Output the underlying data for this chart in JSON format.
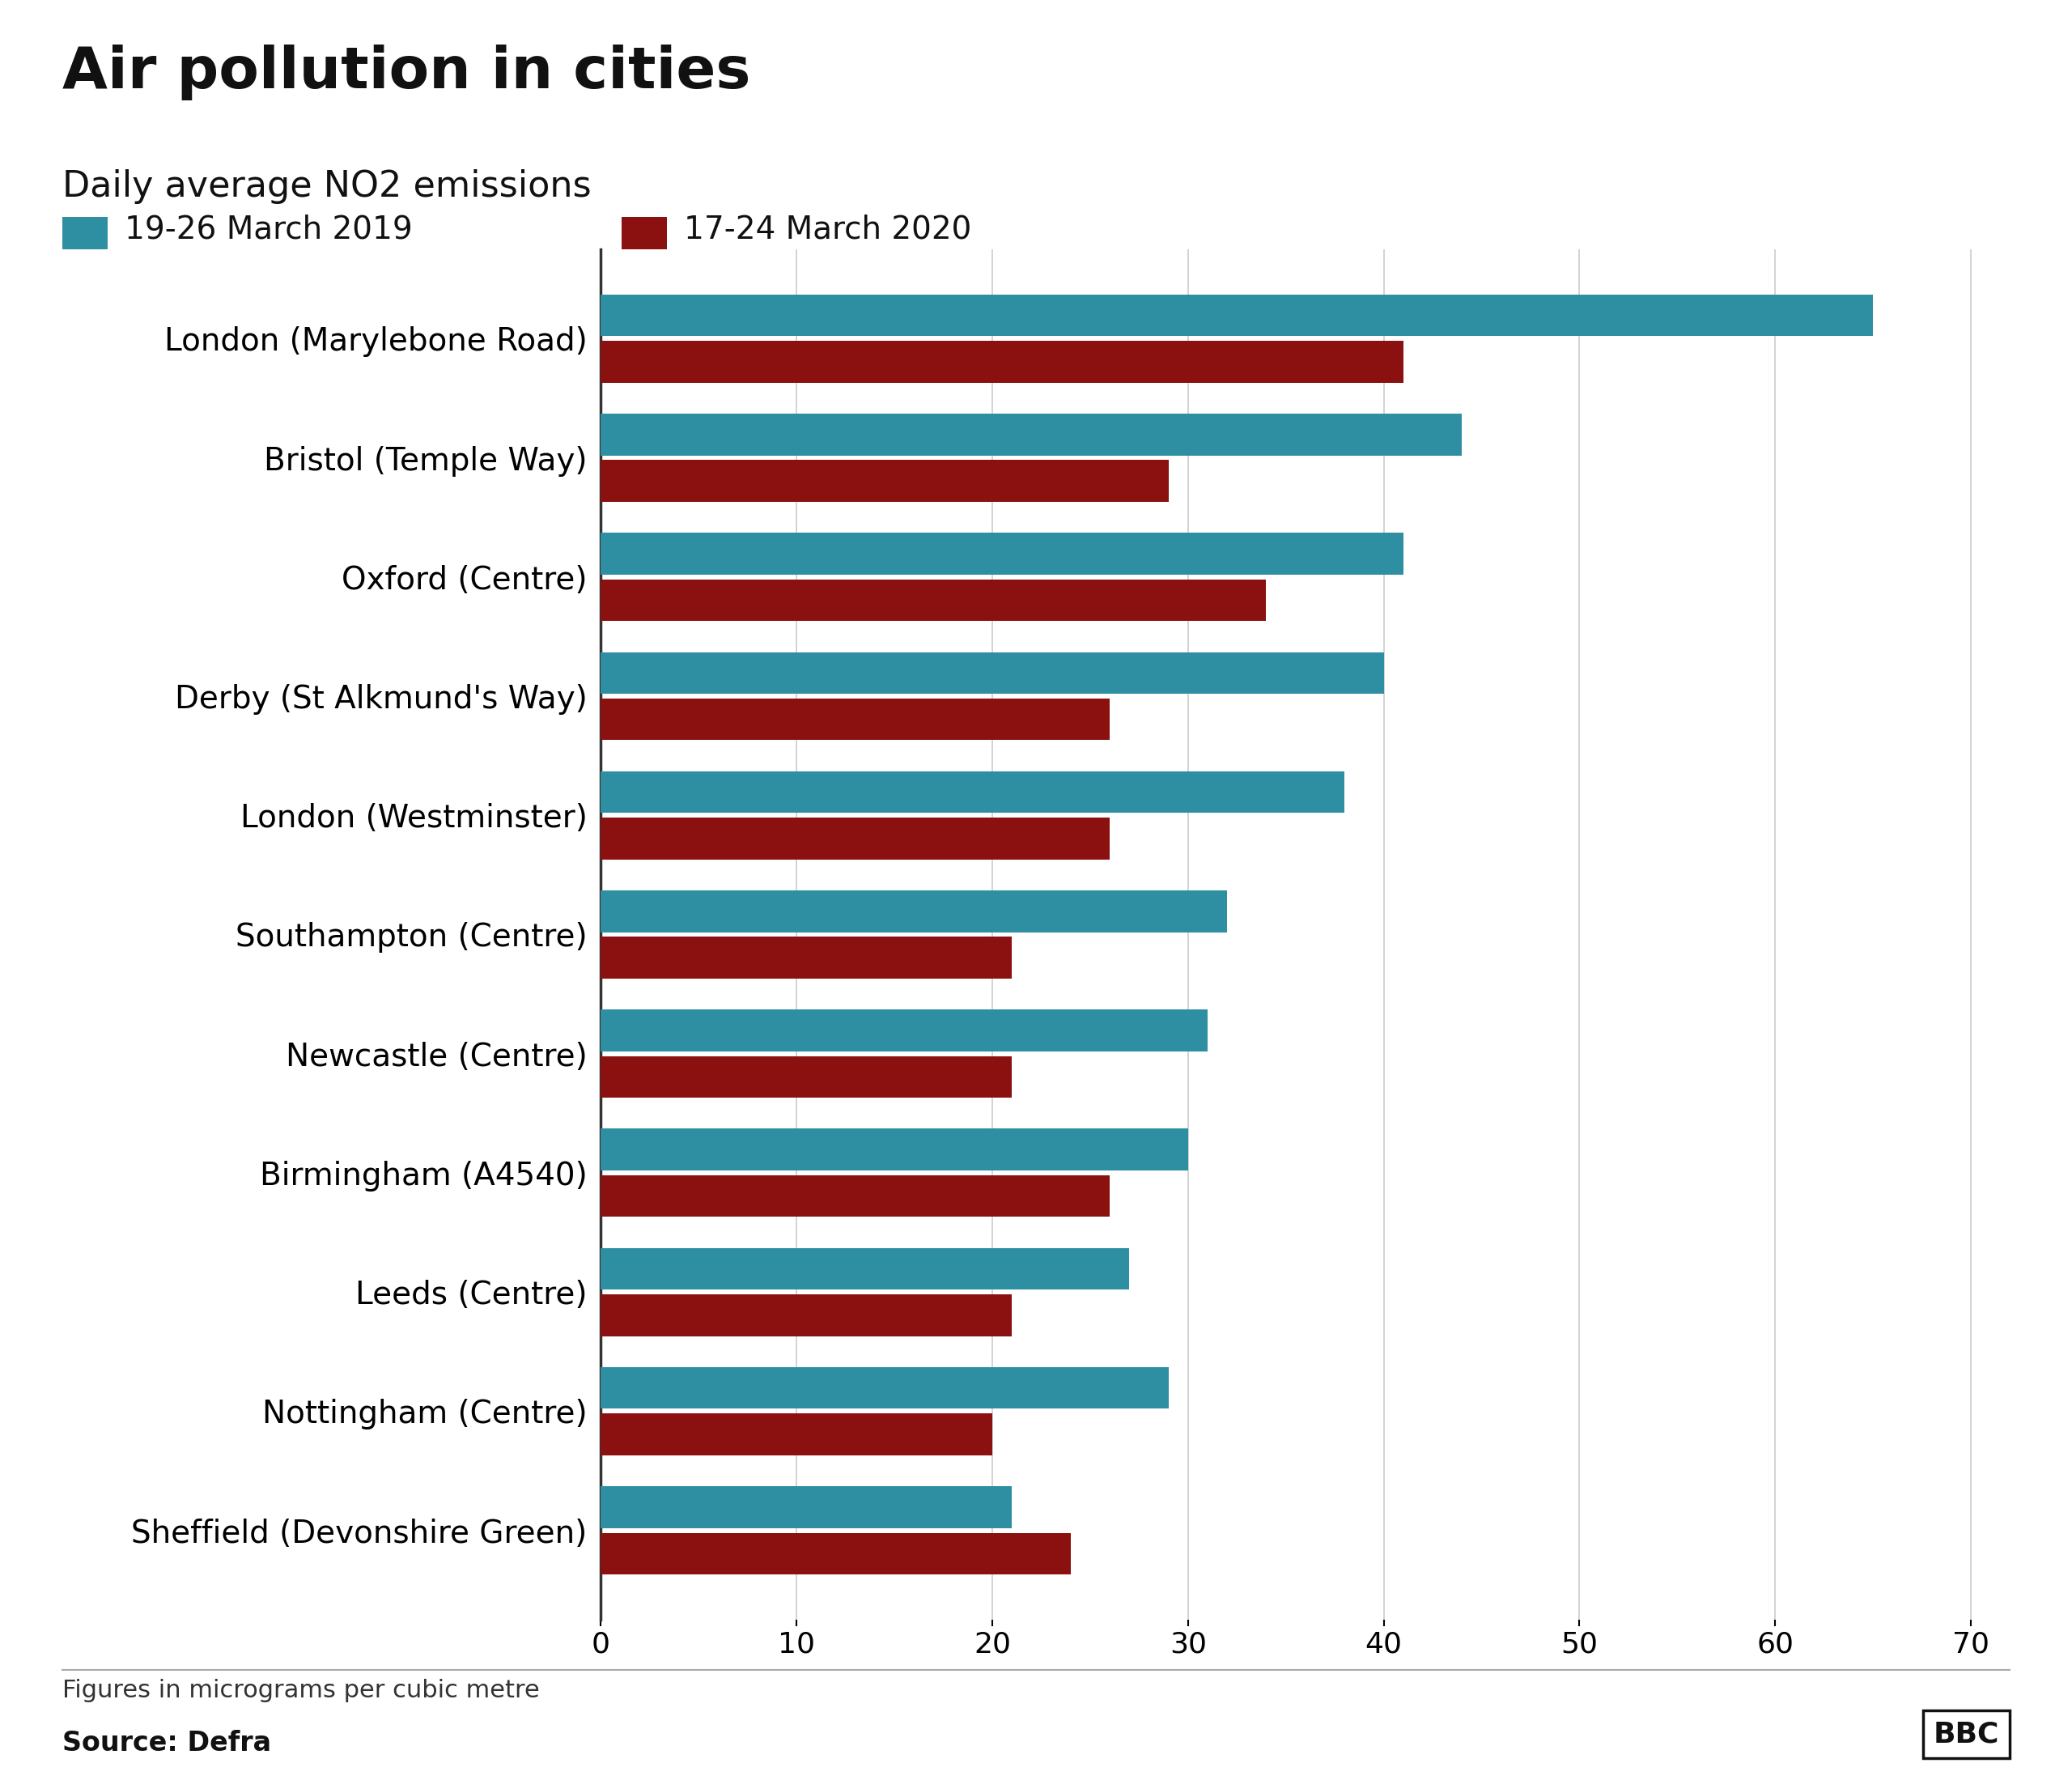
{
  "title": "Air pollution in cities",
  "subtitle": "Daily average NO2 emissions",
  "legend_2019": "19-26 March 2019",
  "legend_2020": "17-24 March 2020",
  "color_2019": "#2E8FA3",
  "color_2020": "#8B1010",
  "categories": [
    "London (Marylebone Road)",
    "Bristol (Temple Way)",
    "Oxford (Centre)",
    "Derby (St Alkmund's Way)",
    "London (Westminster)",
    "Southampton (Centre)",
    "Newcastle (Centre)",
    "Birmingham (A4540)",
    "Leeds (Centre)",
    "Nottingham (Centre)",
    "Sheffield (Devonshire Green)"
  ],
  "values_2019": [
    65,
    44,
    41,
    40,
    38,
    32,
    31,
    30,
    27,
    29,
    21
  ],
  "values_2020": [
    41,
    29,
    34,
    26,
    26,
    21,
    21,
    26,
    21,
    20,
    24
  ],
  "xlim": [
    0,
    72
  ],
  "xticks": [
    0,
    10,
    20,
    30,
    40,
    50,
    60,
    70
  ],
  "footnote": "Figures in micrograms per cubic metre",
  "source": "Source: Defra",
  "bbc_label": "BBC",
  "background_color": "#FFFFFF",
  "bar_height": 0.35,
  "title_fontsize": 52,
  "subtitle_fontsize": 32,
  "legend_fontsize": 28,
  "tick_fontsize": 26,
  "label_fontsize": 28,
  "footnote_fontsize": 22
}
